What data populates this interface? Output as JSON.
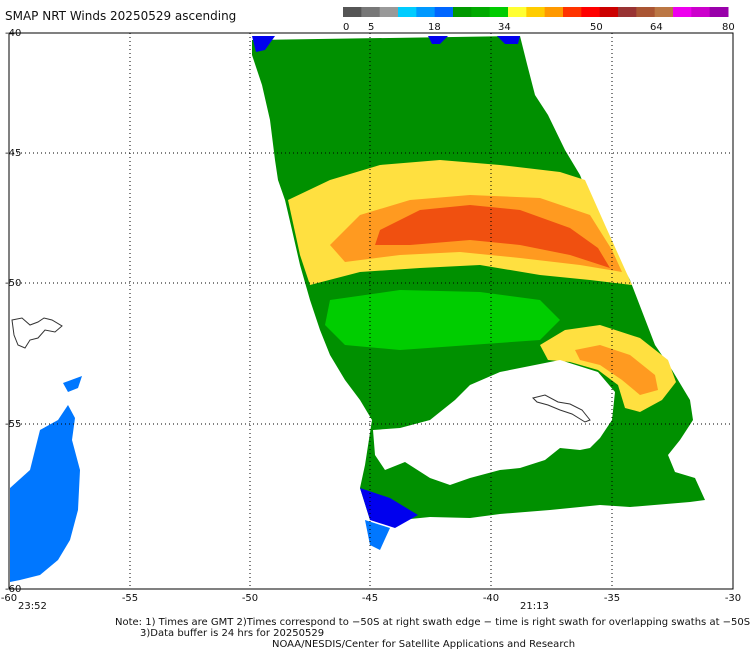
{
  "title": "SMAP NRT Winds 20250529 ascending",
  "colorbar": {
    "labels": [
      "0",
      "5",
      "18",
      "34",
      "50",
      "64",
      "80"
    ],
    "colors": [
      "#555555",
      "#777777",
      "#999999",
      "#00ccff",
      "#0099ff",
      "#0066ff",
      "#009900",
      "#00aa00",
      "#00cc00",
      "#ffff33",
      "#ffcc00",
      "#ff9900",
      "#ff3300",
      "#ff0000",
      "#cc0000",
      "#993333",
      "#aa5533",
      "#bb7744",
      "#ee00ee",
      "#cc00cc",
      "#9900aa"
    ]
  },
  "axes": {
    "lon_labels": [
      "-60",
      "-55",
      "-50",
      "-45",
      "-40",
      "-35",
      "-30"
    ],
    "lat_labels": [
      "-40",
      "-45",
      "-50",
      "-55",
      "-60"
    ]
  },
  "times": {
    "left": "23:52",
    "mid": "21:13"
  },
  "notes": {
    "line1": "Note: 1) Times are GMT 2)Times correspond to −50S at right swath edge − time is right swath for overlapping swaths at −50S",
    "line2": "3)Data buffer is 24 hrs for 20250529",
    "line3": "NOAA/NESDIS/Center for Satellite Applications and Research"
  },
  "palette": {
    "dark_green": "#009000",
    "light_green": "#00e000",
    "yellow": "#ffe040",
    "orange": "#ff9a20",
    "red_orange": "#f05010",
    "blue": "#0066ff",
    "dark_blue": "#0000ee"
  }
}
